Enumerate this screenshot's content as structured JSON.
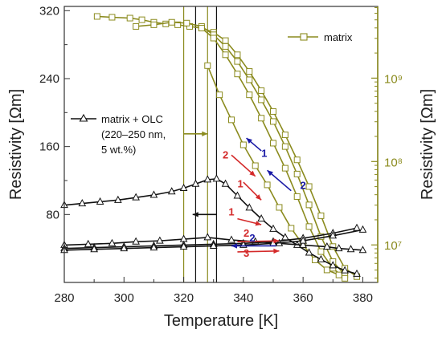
{
  "chart_data": {
    "type": "line",
    "x_axis": {
      "label": "Temperature [K]",
      "range": [
        280,
        385
      ],
      "ticks": [
        280,
        300,
        320,
        340,
        360,
        380
      ]
    },
    "y_left": {
      "label": "Resistivity [Ωm]",
      "range": [
        0,
        325
      ],
      "ticks": [
        80,
        160,
        240,
        320
      ],
      "color": "#222222"
    },
    "y_right": {
      "label": "Resistivity [Ωm]",
      "scale": "log",
      "range_log10": [
        6.55,
        9.86
      ],
      "ticks": [
        {
          "value": 10000000,
          "label": "10⁷"
        },
        {
          "value": 100000000,
          "label": "10⁸"
        },
        {
          "value": 1000000000,
          "label": "10⁹"
        }
      ],
      "color": "#8b8b1e"
    },
    "series": [
      {
        "name": "matrix",
        "axis": "right",
        "marker": "square",
        "color": "#8b8b1e",
        "curves": [
          {
            "x": [
              291,
              296,
              302,
              306,
              310,
              314,
              318,
              322,
              326,
              330,
              334,
              338,
              342,
              346,
              350,
              354,
              358,
              362,
              366,
              370,
              374,
              378
            ],
            "y_log10": [
              9.74,
              9.73,
              9.72,
              9.7,
              9.67,
              9.65,
              9.64,
              9.62,
              9.6,
              9.55,
              9.45,
              9.28,
              9.08,
              8.85,
              8.6,
              8.32,
              8.02,
              7.7,
              7.35,
              6.98,
              6.72,
              6.62
            ]
          },
          {
            "x": [
              304,
              310,
              316,
              321,
              326,
              330,
              334,
              338,
              342,
              346,
              350,
              354,
              358,
              362,
              366,
              370,
              374
            ],
            "y_log10": [
              9.62,
              9.64,
              9.67,
              9.66,
              9.62,
              9.52,
              9.38,
              9.2,
              8.98,
              8.74,
              8.48,
              8.18,
              7.85,
              7.48,
              7.1,
              6.8,
              6.64
            ]
          },
          {
            "x": [
              326,
              330,
              334,
              338,
              342,
              346,
              350,
              354,
              358,
              362,
              366,
              370,
              374
            ],
            "y_log10": [
              9.6,
              9.48,
              9.28,
              9.05,
              8.8,
              8.52,
              8.22,
              7.92,
              7.58,
              7.22,
              6.92,
              6.72,
              6.6
            ]
          },
          {
            "x": [
              328,
              332,
              336,
              340,
              344,
              348,
              352,
              356,
              360,
              364,
              368,
              372
            ],
            "y_log10": [
              9.15,
              8.8,
              8.5,
              8.2,
              7.95,
              7.72,
              7.45,
              7.2,
              7.0,
              6.82,
              6.7,
              6.64
            ]
          }
        ]
      },
      {
        "name": "matrix + OLC",
        "axis": "left",
        "marker": "triangle",
        "color": "#111111",
        "curves": [
          {
            "x": [
              280,
              286,
              292,
              298,
              304,
              310,
              316,
              320,
              324,
              328,
              331,
              334,
              338,
              342,
              346,
              350,
              354,
              358,
              362,
              366,
              370,
              374,
              378
            ],
            "y": [
              91,
              93,
              95,
              97,
              100,
              103,
              107,
              111,
              116,
              121,
              122,
              116,
              102,
              88,
              75,
              63,
              53,
              44,
              35,
              27,
              20,
              14,
              10
            ]
          },
          {
            "x": [
              280,
              288,
              296,
              304,
              312,
              320,
              328,
              336,
              344,
              352,
              360,
              368,
              372,
              376,
              380
            ],
            "y": [
              44,
              45,
              46,
              48,
              49,
              51,
              53,
              50,
              48,
              46,
              44,
              42,
              40,
              39,
              38
            ]
          },
          {
            "x": [
              280,
              290,
              300,
              310,
              320,
              330,
              340,
              350,
              360,
              370,
              378
            ],
            "y": [
              40,
              41,
              42,
              43,
              44,
              45,
              46,
              48,
              52,
              58,
              64
            ]
          },
          {
            "x": [
              280,
              290,
              300,
              310,
              320,
              330,
              340,
              350,
              360,
              370,
              380
            ],
            "y": [
              38,
              39,
              40,
              41,
              42,
              43,
              44,
              46,
              49,
              55,
              62
            ]
          }
        ]
      }
    ],
    "reference_lines_x": [
      {
        "x": 320,
        "color": "#8b8b1e"
      },
      {
        "x": 324,
        "color": "#111111"
      },
      {
        "x": 328,
        "color": "#8b8b1e"
      },
      {
        "x": 331,
        "color": "#111111"
      }
    ],
    "legend": {
      "matrix": "matrix",
      "olc_line1": "matrix + OLC",
      "olc_line2": "(220–250 nm,",
      "olc_line3": "5 wt.%)"
    },
    "step_arrows": [
      {
        "label": "1",
        "color": "#1a1aa6",
        "x1": 346,
        "y1": 155,
        "x2": 341,
        "y2": 170,
        "lx": 347,
        "ly": 148
      },
      {
        "label": "2",
        "color": "#1a1aa6",
        "x1": 356,
        "y1": 108,
        "x2": 348,
        "y2": 132,
        "lx": 360,
        "ly": 110
      },
      {
        "label": "2",
        "color": "#d42a2a",
        "x1": 336,
        "y1": 150,
        "x2": 344,
        "y2": 125,
        "lx": 334,
        "ly": 146
      },
      {
        "label": "1",
        "color": "#d42a2a",
        "x1": 340,
        "y1": 118,
        "x2": 346,
        "y2": 97,
        "lx": 339,
        "ly": 112
      },
      {
        "label": "1",
        "color": "#d42a2a",
        "x1": 338,
        "y1": 75,
        "x2": 346,
        "y2": 68,
        "lx": 336,
        "ly": 79
      },
      {
        "label": "2",
        "color": "#d42a2a",
        "x1": 338,
        "y1": 48,
        "x2": 352,
        "y2": 49,
        "lx": 341,
        "ly": 54
      },
      {
        "label": "2",
        "color": "#1a1aa6",
        "x1": 351,
        "y1": 43,
        "x2": 336,
        "y2": 43,
        "lx": 343,
        "ly": 48
      },
      {
        "label": "3",
        "color": "#d42a2a",
        "x1": 338,
        "y1": 36,
        "x2": 352,
        "y2": 37,
        "lx": 341,
        "ly": 30
      }
    ],
    "axis_arrows": [
      {
        "color": "#8b8b1e",
        "x1": 320,
        "x2": 328,
        "y": 175
      },
      {
        "color": "#111111",
        "x1": 331,
        "x2": 323,
        "y": 80
      }
    ]
  }
}
